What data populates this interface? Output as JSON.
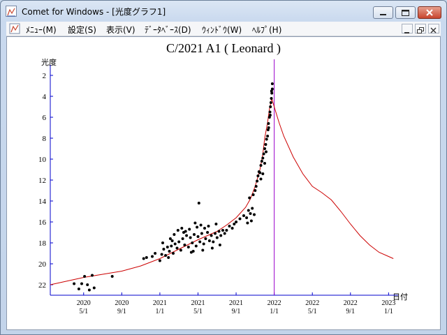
{
  "window": {
    "title": "Comet for Windows - [光度グラフ1]",
    "minimize_label": "",
    "accent": "#c8452e"
  },
  "menubar": {
    "items": [
      "ﾒﾆｭｰ(M)",
      "設定(S)",
      "表示(V)",
      "ﾃﾞｰﾀﾍﾞｰｽ(D)",
      "ｳｨﾝﾄﾞｳ(W)",
      "ﾍﾙﾌﾟ(H)"
    ]
  },
  "chart_data": {
    "type": "scatter",
    "title": "C/2021 A1 ( Leonard )",
    "ylabel": "光度",
    "xlabel": "日付",
    "ylim": [
      1,
      23
    ],
    "y_inverted": true,
    "y_ticks": [
      2,
      4,
      6,
      8,
      10,
      12,
      14,
      16,
      18,
      20,
      22
    ],
    "x_ticks": [
      {
        "year": "2020",
        "md": "5/1",
        "x": 4
      },
      {
        "year": "2020",
        "md": "9/1",
        "x": 8
      },
      {
        "year": "2021",
        "md": "1/1",
        "x": 12
      },
      {
        "year": "2021",
        "md": "5/1",
        "x": 16
      },
      {
        "year": "2021",
        "md": "9/1",
        "x": 20
      },
      {
        "year": "2022",
        "md": "1/1",
        "x": 24
      },
      {
        "year": "2022",
        "md": "5/1",
        "x": 28
      },
      {
        "year": "2022",
        "md": "9/1",
        "x": 32
      },
      {
        "year": "2023",
        "md": "1/1",
        "x": 36
      }
    ],
    "xlim": [
      0.5,
      37
    ],
    "perihelion_line_x": 24,
    "colors": {
      "axis": "#0000cc",
      "curve": "#cc0000",
      "marker": "#9900cc",
      "points": "#000000"
    },
    "predicted_curve": [
      [
        0.5,
        22.0
      ],
      [
        2,
        21.7
      ],
      [
        4,
        21.3
      ],
      [
        6,
        21.0
      ],
      [
        8,
        20.7
      ],
      [
        10,
        20.2
      ],
      [
        12,
        19.5
      ],
      [
        14,
        18.6
      ],
      [
        16,
        17.7
      ],
      [
        18,
        16.9
      ],
      [
        19,
        16.3
      ],
      [
        20,
        15.6
      ],
      [
        21,
        14.6
      ],
      [
        21.5,
        13.8
      ],
      [
        22,
        12.6
      ],
      [
        22.5,
        11.0
      ],
      [
        22.8,
        9.5
      ],
      [
        23.0,
        8.0
      ],
      [
        23.3,
        6.5
      ],
      [
        23.5,
        5.2
      ],
      [
        23.75,
        4.2
      ],
      [
        24.0,
        5.0
      ],
      [
        24.5,
        6.5
      ],
      [
        25,
        7.8
      ],
      [
        26,
        9.8
      ],
      [
        27,
        11.4
      ],
      [
        28,
        12.6
      ],
      [
        29,
        13.2
      ],
      [
        30,
        13.9
      ],
      [
        31,
        15.0
      ],
      [
        32,
        16.2
      ],
      [
        33,
        17.3
      ],
      [
        34,
        18.2
      ],
      [
        35,
        18.9
      ],
      [
        36,
        19.3
      ],
      [
        36.5,
        19.5
      ]
    ],
    "observations": [
      [
        3.0,
        21.9
      ],
      [
        3.5,
        22.4
      ],
      [
        3.8,
        21.9
      ],
      [
        4.1,
        21.2
      ],
      [
        4.4,
        22.0
      ],
      [
        4.6,
        22.5
      ],
      [
        4.9,
        21.1
      ],
      [
        5.1,
        22.3
      ],
      [
        7.0,
        21.2
      ],
      [
        10.3,
        19.5
      ],
      [
        10.6,
        19.4
      ],
      [
        11.2,
        19.3
      ],
      [
        11.5,
        19.0
      ],
      [
        12.0,
        19.7
      ],
      [
        12.2,
        19.1
      ],
      [
        12.4,
        18.6
      ],
      [
        12.6,
        19.2
      ],
      [
        12.8,
        18.4
      ],
      [
        13.0,
        18.8
      ],
      [
        13.2,
        18.3
      ],
      [
        13.4,
        19.0
      ],
      [
        13.6,
        18.1
      ],
      [
        13.8,
        18.5
      ],
      [
        14.0,
        17.9
      ],
      [
        14.2,
        18.7
      ],
      [
        14.4,
        17.6
      ],
      [
        14.6,
        18.2
      ],
      [
        14.8,
        17.3
      ],
      [
        15.0,
        18.4
      ],
      [
        15.2,
        17.5
      ],
      [
        15.4,
        18.0
      ],
      [
        15.6,
        17.2
      ],
      [
        15.8,
        18.3
      ],
      [
        16.0,
        17.4
      ],
      [
        16.2,
        17.9
      ],
      [
        16.4,
        17.1
      ],
      [
        16.6,
        18.1
      ],
      [
        16.8,
        17.6
      ],
      [
        17.0,
        17.0
      ],
      [
        17.2,
        17.8
      ],
      [
        17.4,
        17.3
      ],
      [
        17.6,
        17.9
      ],
      [
        17.8,
        17.1
      ],
      [
        18.0,
        17.5
      ],
      [
        18.2,
        16.9
      ],
      [
        18.4,
        17.3
      ],
      [
        18.6,
        16.8
      ],
      [
        18.8,
        17.1
      ],
      [
        12.9,
        19.4
      ],
      [
        13.1,
        17.6
      ],
      [
        13.5,
        17.2
      ],
      [
        13.9,
        16.8
      ],
      [
        14.3,
        16.6
      ],
      [
        14.7,
        16.9
      ],
      [
        15.1,
        16.7
      ],
      [
        15.5,
        18.8
      ],
      [
        15.9,
        16.5
      ],
      [
        16.3,
        16.3
      ],
      [
        16.7,
        16.6
      ],
      [
        17.1,
        16.4
      ],
      [
        17.5,
        18.5
      ],
      [
        17.9,
        16.2
      ],
      [
        18.3,
        18.2
      ],
      [
        14.5,
        17.0
      ],
      [
        15.3,
        18.9
      ],
      [
        16.5,
        18.7
      ],
      [
        12.3,
        18.0
      ],
      [
        13.3,
        17.8
      ],
      [
        15.7,
        16.1
      ],
      [
        16.1,
        14.2
      ],
      [
        19.0,
        16.8
      ],
      [
        19.3,
        16.4
      ],
      [
        19.6,
        16.6
      ],
      [
        19.8,
        16.2
      ],
      [
        20.0,
        16.0
      ],
      [
        20.4,
        15.7
      ],
      [
        20.8,
        15.4
      ],
      [
        21.1,
        15.6
      ],
      [
        21.3,
        14.9
      ],
      [
        21.5,
        15.2
      ],
      [
        21.7,
        14.7
      ],
      [
        21.2,
        16.1
      ],
      [
        21.6,
        15.9
      ],
      [
        21.9,
        15.3
      ],
      [
        21.4,
        13.7
      ],
      [
        21.8,
        13.4
      ],
      [
        22.0,
        13.0
      ],
      [
        22.1,
        12.6
      ],
      [
        22.2,
        12.1
      ],
      [
        22.3,
        11.6
      ],
      [
        22.4,
        11.2
      ],
      [
        22.5,
        11.3
      ],
      [
        22.6,
        10.6
      ],
      [
        22.7,
        10.2
      ],
      [
        22.8,
        9.9
      ],
      [
        22.9,
        9.5
      ],
      [
        23.0,
        9.0
      ],
      [
        22.6,
        11.9
      ],
      [
        22.8,
        11.4
      ],
      [
        23.0,
        10.4
      ],
      [
        23.1,
        8.6
      ],
      [
        23.2,
        8.1
      ],
      [
        23.3,
        7.8
      ],
      [
        23.35,
        7.2
      ],
      [
        23.4,
        6.6
      ],
      [
        23.5,
        6.0
      ],
      [
        23.55,
        5.5
      ],
      [
        23.6,
        5.0
      ],
      [
        23.65,
        4.6
      ],
      [
        23.7,
        4.2
      ],
      [
        23.75,
        3.7
      ],
      [
        23.8,
        3.3
      ],
      [
        23.8,
        2.8
      ],
      [
        23.72,
        3.5
      ],
      [
        23.58,
        5.8
      ],
      [
        23.42,
        7.0
      ],
      [
        23.15,
        9.3
      ]
    ]
  }
}
